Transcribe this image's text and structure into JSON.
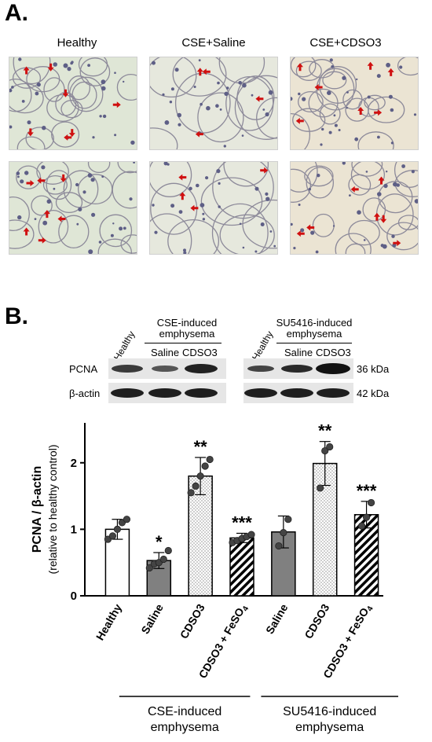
{
  "panel_a": {
    "letter": "A.",
    "columns": [
      "Healthy",
      "CSE+Saline",
      "CSE+CDSO3"
    ]
  },
  "panel_b": {
    "letter": "B.",
    "blot": {
      "left_group_header": [
        "CSE-induced",
        "emphysema"
      ],
      "right_group_header": [
        "SU5416-induced",
        "emphysema"
      ],
      "lane_healthy": "Healthy",
      "lane_saline": "Saline",
      "lane_cdso3": "CDSO3",
      "row_pcna": "PCNA",
      "row_actin": "β-actin",
      "kda_pcna": "36 kDa",
      "kda_actin": "42 kDa"
    }
  },
  "chart_data": {
    "type": "bar",
    "ylabel": "PCNA / β-actin",
    "ylabel_sub": "(relative to healthy control)",
    "ylim": [
      0,
      2.6
    ],
    "yticks": [
      0,
      1,
      2
    ],
    "categories": [
      "Healthy",
      "Saline",
      "CDSO3",
      "CDSO3 + FeSO4",
      "Saline",
      "CDSO3",
      "CDSO3 + FeSO4"
    ],
    "values": [
      1.0,
      0.53,
      1.8,
      0.87,
      0.96,
      1.99,
      1.22
    ],
    "errors": [
      0.15,
      0.12,
      0.28,
      0.07,
      0.24,
      0.33,
      0.2
    ],
    "significance": [
      "",
      "*",
      "**",
      "***",
      "",
      "**",
      "***"
    ],
    "fills": [
      "white",
      "gray",
      "dots",
      "hatch",
      "gray",
      "dots",
      "hatch"
    ],
    "points": [
      [
        0.85,
        0.9,
        1.0,
        1.1,
        1.15
      ],
      [
        0.42,
        0.48,
        0.5,
        0.55,
        0.68
      ],
      [
        1.55,
        1.65,
        1.8,
        1.95,
        2.05
      ],
      [
        0.8,
        0.83,
        0.86,
        0.89,
        0.92
      ],
      [
        0.75,
        0.95,
        1.15
      ],
      [
        1.62,
        2.18,
        2.24
      ],
      [
        1.05,
        1.18,
        1.4
      ]
    ],
    "groups": [
      {
        "label": [
          "CSE-induced",
          "emphysema"
        ],
        "from": 1,
        "to": 3
      },
      {
        "label": [
          "SU5416-induced",
          "emphysema"
        ],
        "from": 4,
        "to": 6
      }
    ]
  }
}
